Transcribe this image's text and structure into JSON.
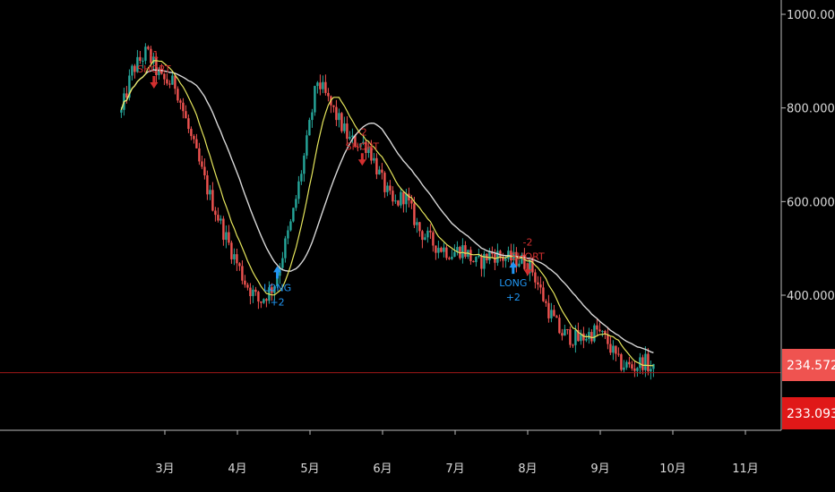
{
  "chart_data": {
    "type": "candlestick",
    "title": "",
    "xlabel": "",
    "ylabel": "",
    "ylim": [
      200,
      1000
    ],
    "grid": false,
    "y_ticks": [
      "1000.000",
      "800.000",
      "600.000",
      "400.000"
    ],
    "y_tick_values": [
      1000,
      800,
      600,
      400
    ],
    "x_ticks": [
      "3月",
      "4月",
      "5月",
      "6月",
      "7月",
      "8月",
      "9月",
      "10月",
      "11月"
    ],
    "x_tick_months": [
      3,
      4,
      5,
      6,
      7,
      8,
      9,
      10,
      11
    ],
    "colors": {
      "background": "#000000",
      "up_candle": "#26a69a",
      "down_candle": "#ef5350",
      "fast_ma": "#e6e65c",
      "slow_ma": "#d8d8d8",
      "short_signal": "#d32f2f",
      "long_signal": "#2196f3",
      "price_line": "#a01818",
      "price_tag_light": "#ef5350",
      "price_tag_dark": "#e01818"
    },
    "price_tags": [
      {
        "label": "234.572",
        "value": 234.572,
        "style": "light"
      },
      {
        "label": "233.093",
        "value": 233.093,
        "style": "dark"
      }
    ],
    "price_line_value": 234.572,
    "signals": [
      {
        "type": "SHORT",
        "count": "-1",
        "month": 2.85,
        "price": 895
      },
      {
        "type": "LONG",
        "count": "+2",
        "month": 4.55,
        "price": 470
      },
      {
        "type": "SHORT",
        "count": "-2",
        "month": 5.72,
        "price": 730
      },
      {
        "type": "LONG",
        "count": "+2",
        "month": 7.8,
        "price": 480
      },
      {
        "type": "SHORT",
        "count": "-2",
        "month": 8.0,
        "price": 495
      }
    ],
    "price_path": [
      [
        2.4,
        790
      ],
      [
        2.55,
        880
      ],
      [
        2.75,
        920
      ],
      [
        2.95,
        860
      ],
      [
        3.15,
        850
      ],
      [
        3.35,
        740
      ],
      [
        3.6,
        620
      ],
      [
        3.85,
        520
      ],
      [
        4.1,
        430
      ],
      [
        4.3,
        385
      ],
      [
        4.5,
        420
      ],
      [
        4.75,
        560
      ],
      [
        4.95,
        720
      ],
      [
        5.1,
        860
      ],
      [
        5.3,
        800
      ],
      [
        5.55,
        730
      ],
      [
        5.8,
        720
      ],
      [
        6.0,
        640
      ],
      [
        6.15,
        590
      ],
      [
        6.3,
        615
      ],
      [
        6.5,
        540
      ],
      [
        6.7,
        510
      ],
      [
        6.95,
        490
      ],
      [
        7.1,
        500
      ],
      [
        7.3,
        465
      ],
      [
        7.5,
        490
      ],
      [
        7.7,
        478
      ],
      [
        7.9,
        475
      ],
      [
        8.05,
        460
      ],
      [
        8.25,
        380
      ],
      [
        8.45,
        320
      ],
      [
        8.7,
        305
      ],
      [
        8.95,
        325
      ],
      [
        9.1,
        300
      ],
      [
        9.25,
        255
      ],
      [
        9.45,
        245
      ],
      [
        9.6,
        260
      ],
      [
        9.75,
        234
      ]
    ]
  }
}
